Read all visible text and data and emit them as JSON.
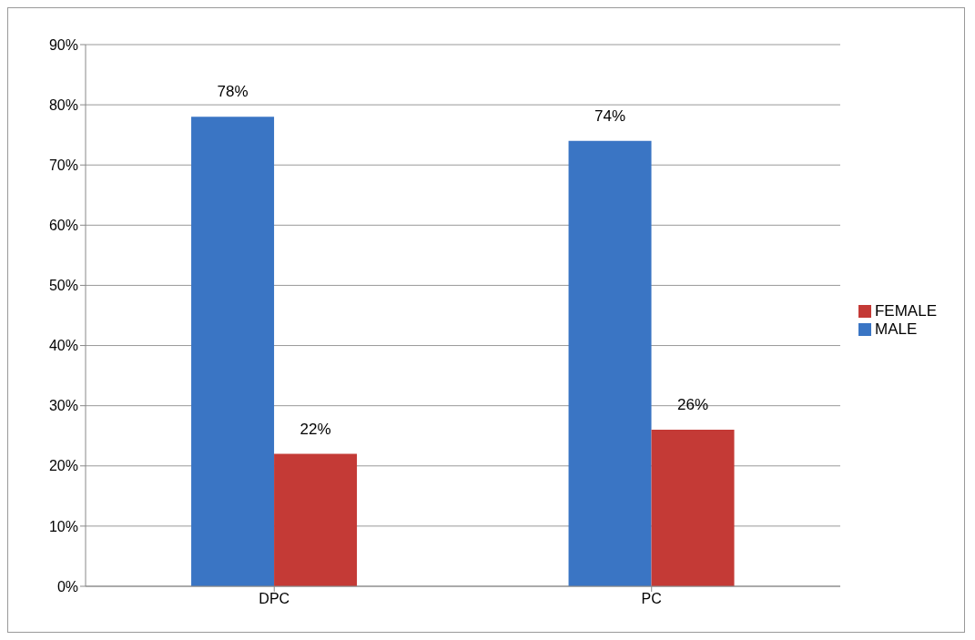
{
  "chart_data": {
    "type": "bar",
    "categories": [
      "DPC",
      "PC"
    ],
    "series": [
      {
        "name": "MALE",
        "color": "#3a75c4",
        "values": [
          78,
          74
        ],
        "value_labels": [
          "78%",
          "74%"
        ]
      },
      {
        "name": "FEMALE",
        "color": "#c43a36",
        "values": [
          22,
          26
        ],
        "value_labels": [
          "22%",
          "26%"
        ]
      }
    ],
    "ylim": [
      0,
      90
    ],
    "yticks": [
      {
        "value": 0,
        "label": "0%"
      },
      {
        "value": 10,
        "label": "10%"
      },
      {
        "value": 20,
        "label": "20%"
      },
      {
        "value": 30,
        "label": "30%"
      },
      {
        "value": 40,
        "label": "40%"
      },
      {
        "value": 50,
        "label": "50%"
      },
      {
        "value": 60,
        "label": "60%"
      },
      {
        "value": 70,
        "label": "70%"
      },
      {
        "value": 80,
        "label": "80%"
      },
      {
        "value": 90,
        "label": "90%"
      }
    ],
    "grid": "y",
    "legend": "right"
  }
}
